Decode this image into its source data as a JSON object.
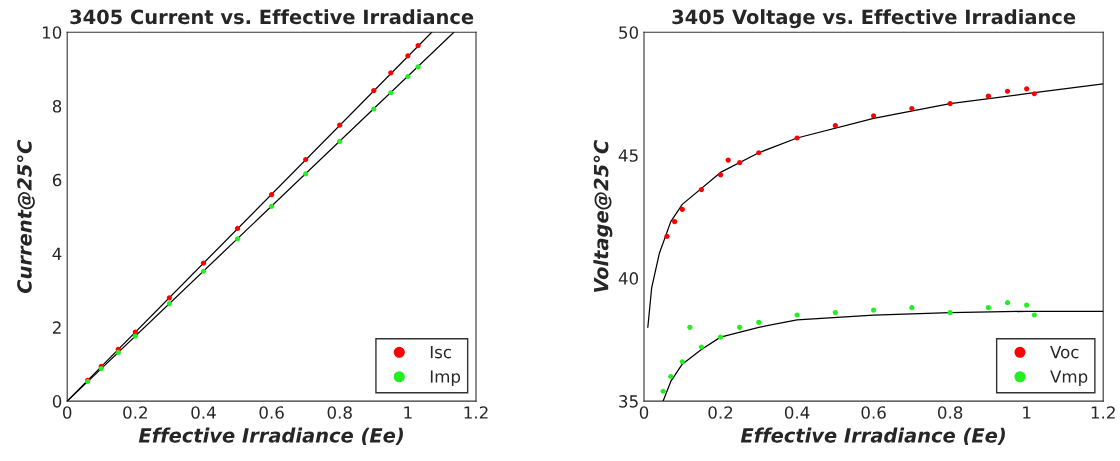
{
  "chart_data": [
    {
      "type": "scatter",
      "title": "3405 Current vs. Effective Irradiance",
      "xlabel": "Effective Irradiance (Ee)",
      "ylabel": "Current@25°C",
      "xlim": [
        0,
        1.2
      ],
      "ylim": [
        0,
        10
      ],
      "xticks": [
        0,
        0.2,
        0.4,
        0.6,
        0.8,
        1,
        1.2
      ],
      "yticks": [
        0,
        2,
        4,
        6,
        8,
        10
      ],
      "legend": "bottom right",
      "series": [
        {
          "name": "Isc",
          "marker": "circle",
          "color": "#ff0000",
          "x": [
            0.06,
            0.1,
            0.15,
            0.2,
            0.3,
            0.4,
            0.5,
            0.6,
            0.7,
            0.8,
            0.9,
            0.95,
            1.0,
            1.03
          ],
          "values": [
            0.56,
            0.94,
            1.4,
            1.87,
            2.8,
            3.74,
            4.68,
            5.6,
            6.55,
            7.48,
            8.42,
            8.9,
            9.36,
            9.64
          ]
        },
        {
          "name": "Imp",
          "marker": "circle",
          "color": "#22ee22",
          "x": [
            0.06,
            0.1,
            0.15,
            0.2,
            0.3,
            0.4,
            0.5,
            0.6,
            0.7,
            0.8,
            0.9,
            0.95,
            1.0,
            1.03
          ],
          "values": [
            0.53,
            0.88,
            1.32,
            1.76,
            2.64,
            3.52,
            4.4,
            5.28,
            6.16,
            7.04,
            7.92,
            8.36,
            8.8,
            9.06
          ]
        },
        {
          "type": "line",
          "color": "#000000",
          "x": [
            0,
            1.07
          ],
          "values": [
            0,
            10
          ]
        },
        {
          "type": "line",
          "color": "#000000",
          "x": [
            0,
            1.135
          ],
          "values": [
            0,
            10
          ]
        }
      ]
    },
    {
      "type": "scatter",
      "title": "3405 Voltage vs. Effective Irradiance",
      "xlabel": "Effective Irradiance (Ee)",
      "ylabel": "Voltage@25°C",
      "xlim": [
        0,
        1.2
      ],
      "ylim": [
        35,
        50
      ],
      "xticks": [
        0,
        0.2,
        0.4,
        0.6,
        0.8,
        1,
        1.2
      ],
      "yticks": [
        35,
        40,
        45,
        50
      ],
      "legend": "bottom right",
      "series": [
        {
          "name": "Voc",
          "marker": "circle",
          "color": "#ff0000",
          "x": [
            0.06,
            0.08,
            0.1,
            0.15,
            0.2,
            0.22,
            0.25,
            0.3,
            0.4,
            0.5,
            0.6,
            0.7,
            0.8,
            0.9,
            0.95,
            1.0,
            1.02
          ],
          "values": [
            41.7,
            42.3,
            42.8,
            43.6,
            44.2,
            44.8,
            44.7,
            45.1,
            45.7,
            46.2,
            46.6,
            46.9,
            47.1,
            47.4,
            47.6,
            47.7,
            47.5
          ]
        },
        {
          "name": "Vmp",
          "marker": "circle",
          "color": "#22ee22",
          "x": [
            0.05,
            0.07,
            0.1,
            0.12,
            0.15,
            0.2,
            0.25,
            0.3,
            0.4,
            0.5,
            0.6,
            0.7,
            0.8,
            0.9,
            0.95,
            1.0,
            1.02
          ],
          "values": [
            35.4,
            36.0,
            36.6,
            38.0,
            37.2,
            37.6,
            38.0,
            38.2,
            38.5,
            38.6,
            38.7,
            38.8,
            38.6,
            38.8,
            39.0,
            38.9,
            38.5
          ]
        },
        {
          "type": "line",
          "color": "#000000",
          "x": [
            0.01,
            0.02,
            0.04,
            0.07,
            0.1,
            0.2,
            0.3,
            0.4,
            0.6,
            0.8,
            1.0,
            1.2
          ],
          "values": [
            38.0,
            39.6,
            41.0,
            42.3,
            43.0,
            44.3,
            45.1,
            45.7,
            46.5,
            47.1,
            47.5,
            47.9
          ]
        },
        {
          "type": "line",
          "color": "#000000",
          "x": [
            0.05,
            0.07,
            0.1,
            0.15,
            0.2,
            0.3,
            0.4,
            0.6,
            0.8,
            1.0,
            1.2
          ],
          "values": [
            35.0,
            35.8,
            36.5,
            37.1,
            37.6,
            38.0,
            38.3,
            38.5,
            38.6,
            38.65,
            38.65
          ]
        }
      ]
    }
  ]
}
